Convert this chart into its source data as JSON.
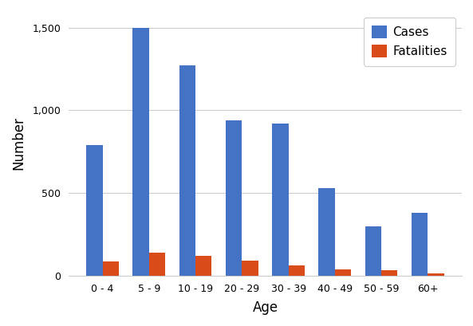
{
  "categories": [
    "0 - 4",
    "5 - 9",
    "10 - 19",
    "20 - 29",
    "30 - 39",
    "40 - 49",
    "50 - 59",
    "60+"
  ],
  "cases": [
    790,
    1500,
    1270,
    940,
    920,
    530,
    300,
    380
  ],
  "fatalities": [
    85,
    140,
    120,
    90,
    65,
    40,
    35,
    15
  ],
  "cases_color": "#4472C4",
  "fatalities_color": "#D94C1A",
  "xlabel": "Age",
  "ylabel": "Number",
  "ylim": [
    0,
    1600
  ],
  "yticks": [
    0,
    500,
    1000,
    1500
  ],
  "legend_labels": [
    "Cases",
    "Fatalities"
  ],
  "bar_width": 0.35,
  "background_color": "#ffffff",
  "grid_color": "#cccccc"
}
